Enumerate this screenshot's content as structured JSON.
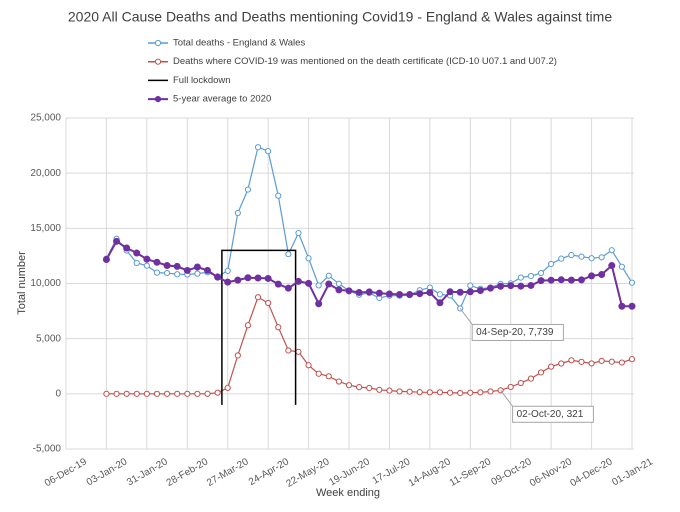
{
  "chart_data": {
    "type": "line",
    "title": "2020 All Cause Deaths and Deaths mentioning Covid19 - England & Wales against time",
    "xlabel": "Week ending",
    "ylabel": "Total number",
    "x": [
      "03-Jan-20",
      "10-Jan-20",
      "17-Jan-20",
      "24-Jan-20",
      "31-Jan-20",
      "07-Feb-20",
      "14-Feb-20",
      "21-Feb-20",
      "28-Feb-20",
      "06-Mar-20",
      "13-Mar-20",
      "20-Mar-20",
      "27-Mar-20",
      "03-Apr-20",
      "10-Apr-20",
      "17-Apr-20",
      "24-Apr-20",
      "01-May-20",
      "08-May-20",
      "15-May-20",
      "22-May-20",
      "29-May-20",
      "05-Jun-20",
      "12-Jun-20",
      "19-Jun-20",
      "26-Jun-20",
      "03-Jul-20",
      "10-Jul-20",
      "17-Jul-20",
      "24-Jul-20",
      "31-Jul-20",
      "07-Aug-20",
      "14-Aug-20",
      "21-Aug-20",
      "28-Aug-20",
      "04-Sep-20",
      "11-Sep-20",
      "18-Sep-20",
      "25-Sep-20",
      "02-Oct-20",
      "09-Oct-20",
      "16-Oct-20",
      "23-Oct-20",
      "30-Oct-20",
      "06-Nov-20",
      "13-Nov-20",
      "20-Nov-20",
      "27-Nov-20",
      "04-Dec-20",
      "11-Dec-20",
      "18-Dec-20",
      "25-Dec-20",
      "01-Jan-21"
    ],
    "series": [
      {
        "name": "Total deaths - England & Wales",
        "color": "#5b9bd5",
        "marker": "hollow",
        "values": [
          12254,
          14058,
          12990,
          11856,
          11612,
          10986,
          10944,
          10841,
          10816,
          10895,
          11019,
          10645,
          11141,
          16387,
          18516,
          22351,
          21997,
          17953,
          12657,
          14573,
          12288,
          9824,
          10709,
          9976,
          9339,
          8979,
          9140,
          8690,
          8891,
          8891,
          8946,
          9392,
          9631,
          9024,
          8906,
          7739,
          9811,
          9523,
          9634,
          9965,
          10012,
          10534,
          10682,
          10946,
          11768,
          12254,
          12581,
          12438,
          12292,
          12374,
          13011,
          11520,
          10069
        ],
        "value_labels": [
          null,
          null,
          null,
          null,
          null,
          null,
          null,
          null,
          null,
          null,
          null,
          null,
          null,
          null,
          null,
          null,
          null,
          null,
          null,
          null,
          null,
          null,
          null,
          null,
          null,
          null,
          null,
          null,
          null,
          null,
          null,
          null,
          null,
          null,
          null,
          "04-Sep-20, 7,739",
          null,
          null,
          null,
          null,
          null,
          null,
          null,
          null,
          null,
          null,
          null,
          null,
          null,
          null,
          null,
          null,
          null
        ]
      },
      {
        "name": "Deaths where COVID-19 was mentioned on the death certificate (ICD-10 U07.1 and U07.2)",
        "color": "#c0504d",
        "marker": "hollow",
        "values": [
          0,
          0,
          0,
          0,
          0,
          0,
          0,
          0,
          0,
          0,
          5,
          103,
          539,
          3475,
          6213,
          8758,
          8237,
          6035,
          3930,
          3810,
          2589,
          1822,
          1588,
          1114,
          783,
          606,
          532,
          366,
          295,
          217,
          193,
          152,
          139,
          138,
          101,
          78,
          99,
          139,
          215,
          321,
          625,
          978,
          1379,
          1937,
          2466,
          2749,
          3040,
          2897,
          2756,
          2985,
          2912,
          2835,
          3145
        ],
        "value_labels": [
          null,
          null,
          null,
          null,
          null,
          null,
          null,
          null,
          null,
          null,
          null,
          null,
          null,
          null,
          null,
          null,
          null,
          null,
          null,
          null,
          null,
          null,
          null,
          null,
          null,
          null,
          null,
          null,
          null,
          null,
          null,
          null,
          null,
          null,
          null,
          null,
          null,
          null,
          null,
          "02-Oct-20, 321",
          null,
          null,
          null,
          null,
          null,
          null,
          null,
          null,
          null,
          null,
          null,
          null,
          null
        ]
      },
      {
        "name": "Full lockdown",
        "color": "#000000",
        "marker": "none",
        "x": [
          "23-Mar-20",
          "23-Mar-20",
          "13-May-20",
          "13-May-20"
        ],
        "values": [
          -1000,
          13000,
          13000,
          -1000
        ]
      },
      {
        "name": "5-year average to 2020",
        "color": "#7030a0",
        "marker": "filled",
        "values": [
          12175,
          13822,
          13216,
          12760,
          12206,
          11925,
          11627,
          11548,
          11183,
          11498,
          11185,
          10573,
          10130,
          10305,
          10520,
          10497,
          10458,
          9941,
          9576,
          10188,
          10015,
          8167,
          9952,
          9420,
          9337,
          9188,
          9237,
          9125,
          9053,
          9004,
          9005,
          9084,
          9186,
          8250,
          9248,
          9210,
          9255,
          9367,
          9578,
          9748,
          9804,
          9758,
          9823,
          10261,
          10299,
          10336,
          10308,
          10329,
          10694,
          10815,
          11627,
          7939,
          7939
        ]
      }
    ],
    "xlim": [
      "06-Dec-19",
      "01-Jan-21"
    ],
    "xticks": [
      "06-Dec-19",
      "03-Jan-20",
      "31-Jan-20",
      "28-Feb-20",
      "27-Mar-20",
      "24-Apr-20",
      "22-May-20",
      "19-Jun-20",
      "17-Jul-20",
      "14-Aug-20",
      "11-Sep-20",
      "09-Oct-20",
      "06-Nov-20",
      "04-Dec-20",
      "01-Jan-21"
    ],
    "ylim": [
      -5000,
      25000
    ],
    "yticks": [
      {
        "value": -5000,
        "label": "-5,000"
      },
      0,
      {
        "value": 5000,
        "label": "5,000"
      },
      {
        "value": 10000,
        "label": "10,000"
      },
      {
        "value": 15000,
        "label": "15,000"
      },
      {
        "value": 20000,
        "label": "20,000"
      },
      {
        "value": 25000,
        "label": "25,000"
      }
    ],
    "grid": true,
    "legend": "top"
  }
}
